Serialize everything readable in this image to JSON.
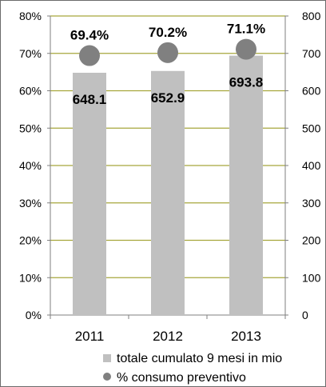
{
  "chart_data": {
    "type": "bar",
    "categories": [
      "2011",
      "2012",
      "2013"
    ],
    "series": [
      {
        "name": "totale cumulato 9 mesi in mio",
        "type": "bar",
        "axis": "right",
        "values": [
          648.1,
          652.9,
          693.8
        ],
        "labels": [
          "648.1",
          "652.9",
          "693.8"
        ],
        "color": "#c0c0c0"
      },
      {
        "name": "% consumo preventivo",
        "type": "scatter",
        "axis": "left",
        "values": [
          69.4,
          70.2,
          71.1
        ],
        "labels": [
          "69.4%",
          "70.2%",
          "71.1%"
        ],
        "color": "#808080"
      }
    ],
    "y_left": {
      "ticks": [
        "0%",
        "10%",
        "20%",
        "30%",
        "40%",
        "50%",
        "60%",
        "70%",
        "80%"
      ],
      "ylim": [
        0,
        80
      ]
    },
    "y_right": {
      "ticks": [
        "0",
        "100",
        "200",
        "300",
        "400",
        "500",
        "600",
        "700",
        "800"
      ],
      "ylim": [
        0,
        800
      ]
    },
    "gridline_color": "#a6a63c",
    "legend_position": "bottom-right",
    "title": "",
    "xlabel": "",
    "ylabel": ""
  }
}
